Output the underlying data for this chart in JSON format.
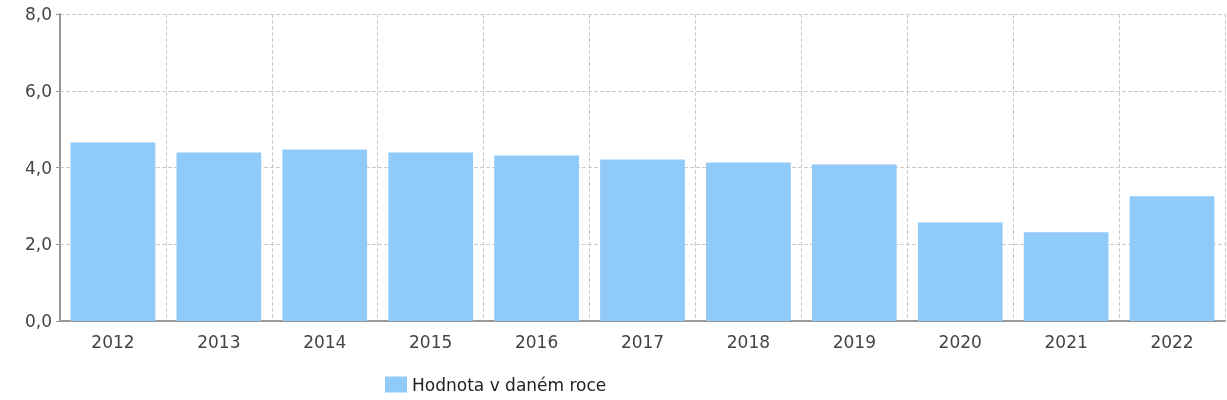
{
  "chart_data": {
    "type": "bar",
    "categories": [
      "2012",
      "2013",
      "2014",
      "2015",
      "2016",
      "2017",
      "2018",
      "2019",
      "2020",
      "2021",
      "2022"
    ],
    "series": [
      {
        "name": "Hodnota v daném roce",
        "color": "#90caf9",
        "values": [
          4.65,
          4.39,
          4.47,
          4.39,
          4.31,
          4.21,
          4.13,
          4.08,
          2.57,
          2.31,
          3.25
        ]
      }
    ],
    "ylim": [
      0,
      8
    ],
    "yticks": [
      {
        "value": 0,
        "label": "0,0"
      },
      {
        "value": 2,
        "label": "2,0"
      },
      {
        "value": 4,
        "label": "4,0"
      },
      {
        "value": 6,
        "label": "6,0"
      },
      {
        "value": 8,
        "label": "8,0"
      }
    ],
    "grid": true,
    "legend": "bottom"
  }
}
